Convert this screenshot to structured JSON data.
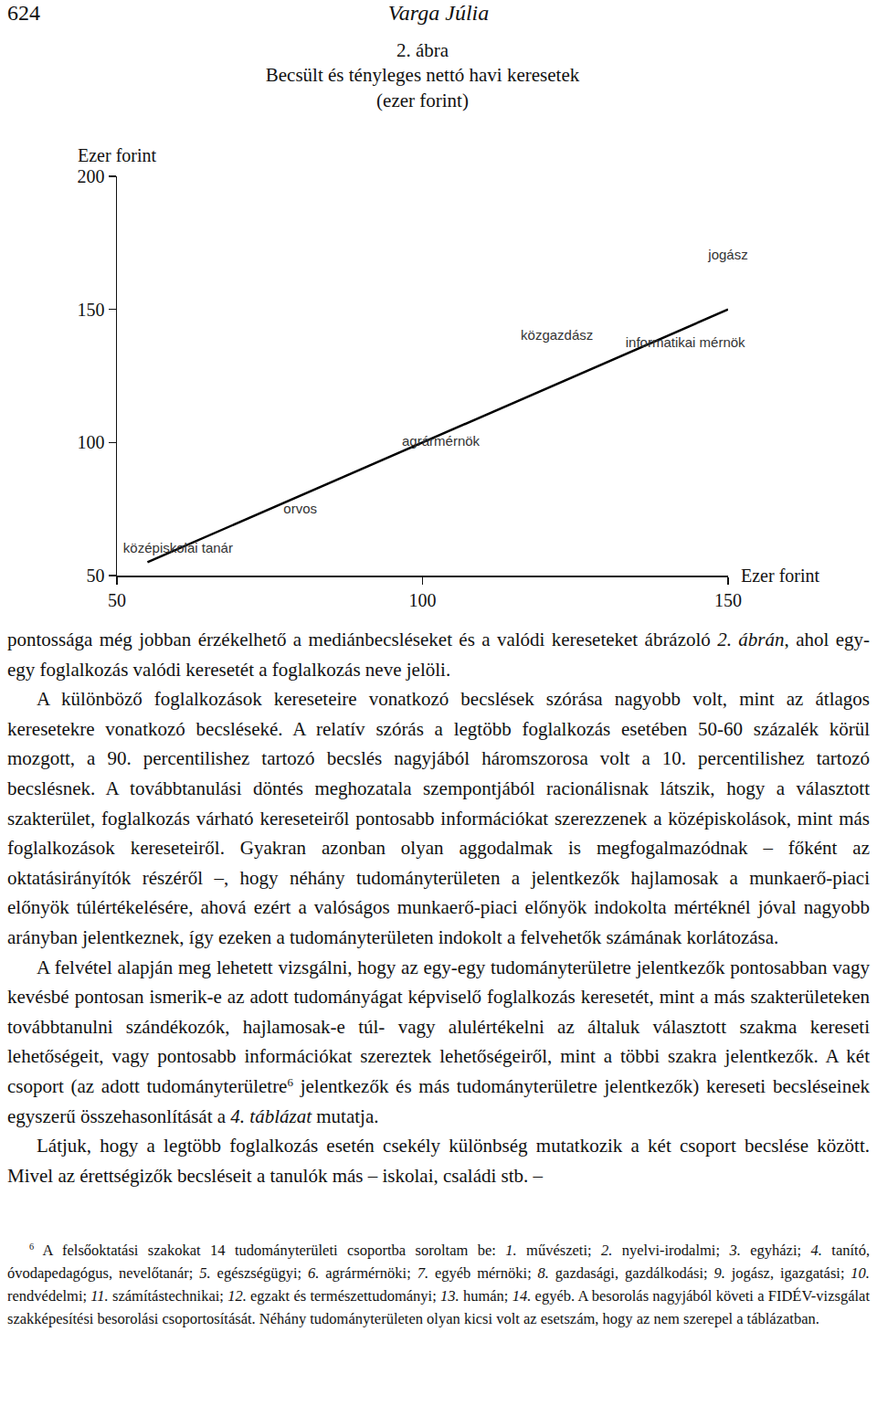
{
  "header": {
    "page_number": "624",
    "author": "Varga Júlia"
  },
  "chart_data": {
    "type": "scatter",
    "title": "2. ábra\nBecsült és tényleges nettó havi keresetek\n(ezer forint)",
    "xlabel": "Ezer forint",
    "ylabel": "Ezer forint",
    "xlim": [
      50,
      150
    ],
    "ylim": [
      50,
      200
    ],
    "xticks": [
      50,
      100,
      150
    ],
    "yticks": [
      50,
      100,
      150,
      200
    ],
    "grid": false,
    "series": [
      {
        "type": "line",
        "color": "#000000",
        "x": [
          55,
          150
        ],
        "values": [
          55,
          150
        ]
      },
      {
        "type": "text",
        "color": "#333333",
        "labels": [
          "középiskolai tanár",
          "orvos",
          "agrármérnök",
          "közgazdász",
          "informatikai mérnök",
          "jogász"
        ],
        "x": [
          60,
          80,
          103,
          122,
          143,
          150
        ],
        "values": [
          60,
          74.5,
          100,
          140,
          137,
          170
        ]
      }
    ]
  },
  "body": {
    "paragraphs": [
      [
        "pontossága még jobban érzékelhető a mediánbecsléseket és a valódi kereseteket ábrázoló ",
        {
          "italic": "2. ábrán"
        },
        ", ahol egy-egy foglalkozás valódi keresetét a foglalkozás neve jelöli."
      ],
      [
        "A különböző foglalkozások kereseteire vonatkozó becslések szórása nagyobb volt, mint az átlagos keresetekre vonatkozó becsléseké. A relatív szórás a legtöbb foglalkozás esetében 50-60 százalék körül mozgott, a 90. percentilishez tartozó becslés nagyjából háromszorosa volt a 10. percentilishez tartozó becslésnek. A továbbtanulási döntés meghozatala szempontjából racionálisnak látszik, hogy a választott szakterület, foglalkozás várható kereseteiről pontosabb információkat szerezzenek a középiskolások, mint más foglalkozások kereseteiről. Gyakran azonban olyan aggodalmak is megfogalmazódnak – főként az oktatásirányítók részéről –, hogy néhány tudományterületen a jelentkezők hajlamosak a munkaerő-piaci előnyök túlértékelésére, ahová ezért a valóságos munkaerő-piaci előnyök indokolta mértéknél jóval nagyobb arányban jelentkeznek, így ezeken a tudományterületen indokolt a felvehetők számának korlátozása."
      ],
      [
        "A felvétel alapján meg lehetett vizsgálni, hogy az egy-egy tudományterületre jelentkezők pontosabban vagy kevésbé pontosan ismerik-e az adott tudományágat képviselő foglalkozás keresetét, mint a más szakterületeken továbbtanulni szándékozók, hajlamosak-e túl- vagy alulértékelni az általuk választott szakma kereseti lehetőségeit, vagy pontosabb információkat szereztek lehetőségeiről, mint a többi szakra jelentkezők. A két csoport (az adott tudományterületre",
        {
          "sup": "6"
        },
        " jelentkezők és más tudományterületre jelentkezők) kereseti becsléseinek egyszerű összehasonlítását a ",
        {
          "italic": "4. táblázat"
        },
        " mutatja."
      ],
      [
        "Látjuk, hogy a legtöbb foglalkozás esetén csekély különbség mutatkozik a két csoport becslése között. Mivel az érettségizők becsléseit a tanulók más – iskolai, családi stb. –"
      ]
    ]
  },
  "footnote": [
    {
      "sup": "6"
    },
    " A felsőoktatási szakokat 14 tudományterületi csoportba soroltam be: ",
    {
      "italic": "1."
    },
    " művészeti; ",
    {
      "italic": "2."
    },
    " nyelvi-irodalmi; ",
    {
      "italic": "3."
    },
    " egyházi; ",
    {
      "italic": "4."
    },
    " tanító, óvodapedagógus, nevelőtanár; ",
    {
      "italic": "5."
    },
    " egészségügyi; ",
    {
      "italic": "6."
    },
    " agrármérnöki; ",
    {
      "italic": "7."
    },
    " egyéb mérnöki; ",
    {
      "italic": "8."
    },
    " gazdasági, gazdálkodási; ",
    {
      "italic": "9."
    },
    " jogász, igazgatási; ",
    {
      "italic": "10."
    },
    " rendvédelmi; ",
    {
      "italic": "11."
    },
    " számítástechnikai; ",
    {
      "italic": "12."
    },
    " egzakt és természettudományi; ",
    {
      "italic": "13."
    },
    " humán; ",
    {
      "italic": "14."
    },
    " egyéb. A besorolás nagyjából követi a FIDÉV-vizsgálat szakképesítési besorolási csoportosítását. Néhány tudományterületen olyan kicsi volt az esetszám, hogy az nem szerepel a táblázatban."
  ]
}
